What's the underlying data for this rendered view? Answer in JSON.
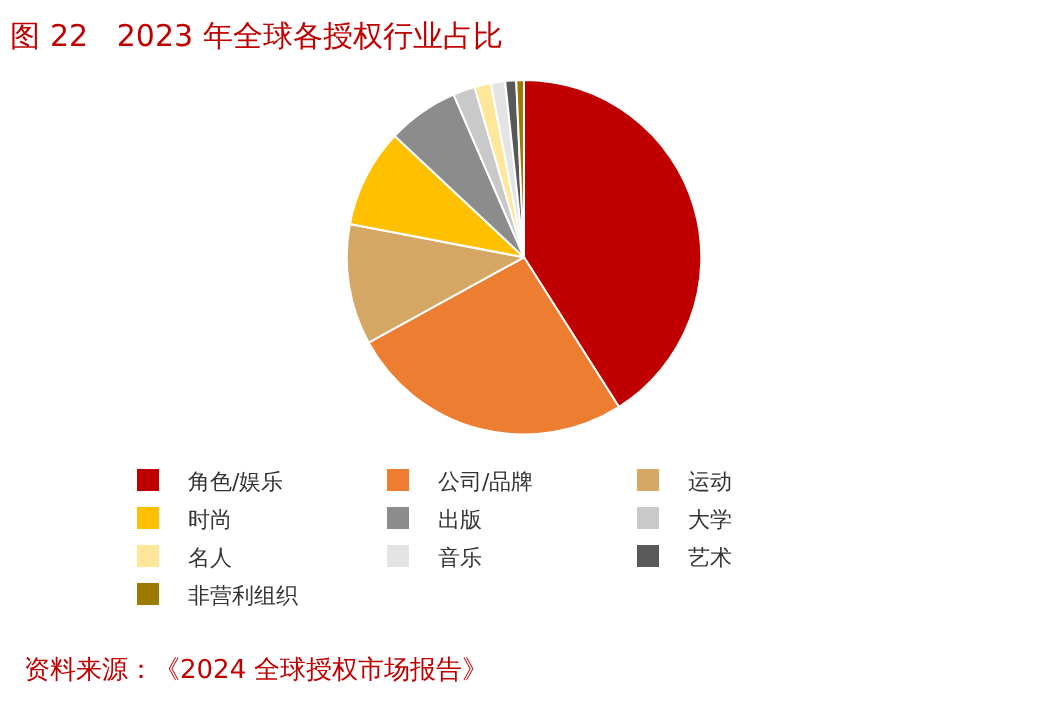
{
  "chart_data": {
    "type": "pie",
    "title": "图 22   2023 年全球各授权行业占比",
    "categories": [
      "角色/娱乐",
      "公司/品牌",
      "运动",
      "时尚",
      "出版",
      "大学",
      "名人",
      "音乐",
      "艺术",
      "非营利组织"
    ],
    "values": [
      41,
      26,
      11,
      9,
      6.5,
      2,
      1.5,
      1.3,
      1,
      0.7
    ],
    "colors": [
      "#c00000",
      "#ed7d31",
      "#d4a864",
      "#ffc000",
      "#8c8c8c",
      "#c9c9c9",
      "#ffe699",
      "#e4e4e4",
      "#595959",
      "#9c7a00"
    ],
    "legend": "bottom",
    "annotations": [
      "资料来源：《2024 全球授权市场报告》"
    ]
  }
}
